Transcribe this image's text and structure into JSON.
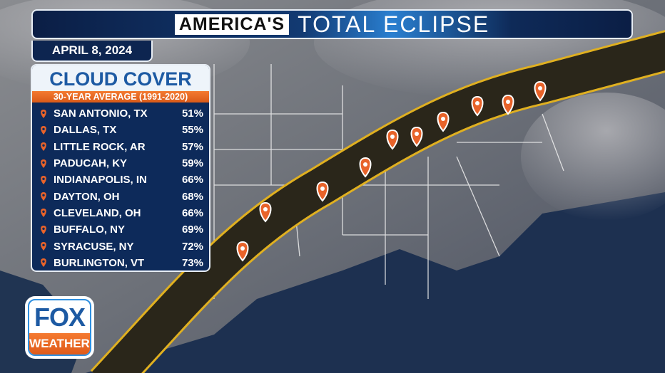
{
  "header": {
    "brand": "AMERICA'S",
    "title": "TOTAL ECLIPSE",
    "date": "APRIL 8, 2024"
  },
  "panel": {
    "title": "CLOUD COVER",
    "subtitle": "30-YEAR AVERAGE (1991-2020)",
    "cities": [
      {
        "name": "SAN ANTONIO, TX",
        "value": "51%"
      },
      {
        "name": "DALLAS, TX",
        "value": "55%"
      },
      {
        "name": "LITTLE ROCK, AR",
        "value": "57%"
      },
      {
        "name": "PADUCAH, KY",
        "value": "59%"
      },
      {
        "name": "INDIANAPOLIS, IN",
        "value": "66%"
      },
      {
        "name": "DAYTON, OH",
        "value": "68%"
      },
      {
        "name": "CLEVELAND, OH",
        "value": "66%"
      },
      {
        "name": "BUFFALO, NY",
        "value": "69%"
      },
      {
        "name": "SYRACUSE, NY",
        "value": "72%"
      },
      {
        "name": "BURLINGTON, VT",
        "value": "73%"
      }
    ]
  },
  "logo": {
    "top": "FOX",
    "bottom": "WEATHER"
  },
  "colors": {
    "pin": "#e8632a",
    "path_edge": "#e0b020",
    "path_fill": "#1a1a1a",
    "title_blue": "#1d5aa3"
  }
}
